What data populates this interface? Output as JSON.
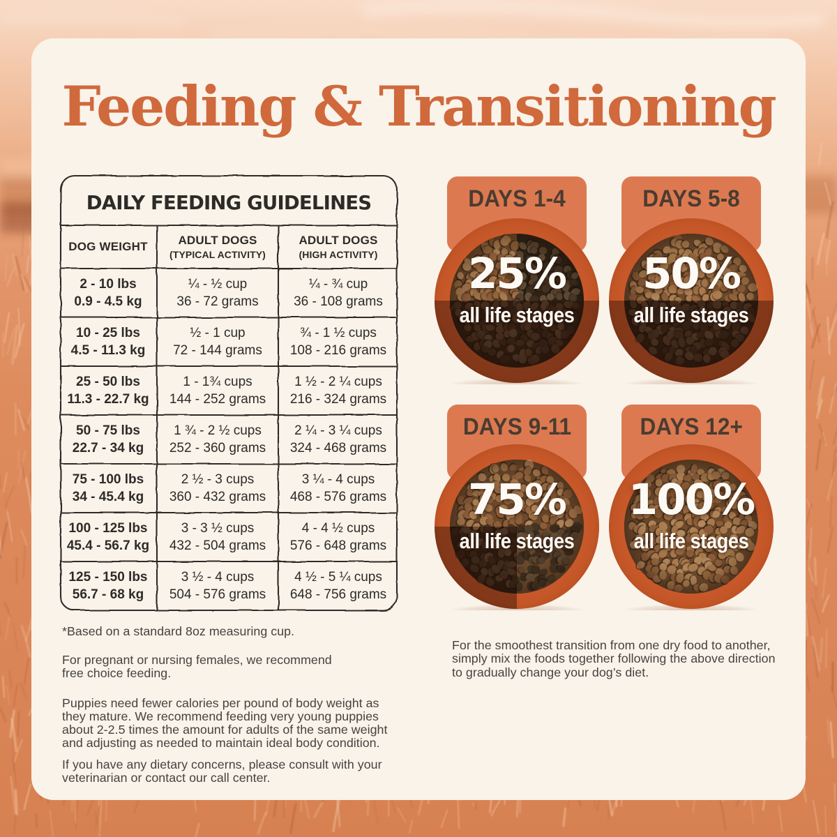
{
  "page": {
    "title": "Feeding & Transitioning"
  },
  "colors": {
    "title_orange": "#d0693c",
    "card_bg": "#f9f3ea",
    "text_dark": "#2d2b28",
    "text_body": "#45423e",
    "step_header_bg": "#dd7950",
    "step_header_text": "#4a3c31",
    "bowl_rim": "#ca5a2d",
    "bowl_rim_dark": "#b54d24",
    "field_orange": "#dd8a5c",
    "sky_peach": "#f6d2ba",
    "white_text": "#fdfaf5"
  },
  "table": {
    "title": "DAILY FEEDING GUIDELINES",
    "columns": [
      {
        "label": "DOG WEIGHT",
        "sub": ""
      },
      {
        "label": "ADULT DOGS",
        "sub": "(TYPICAL ACTIVITY)"
      },
      {
        "label": "ADULT DOGS",
        "sub": "(HIGH ACTIVITY)"
      }
    ],
    "rows": [
      {
        "weight": [
          "2 - 10 lbs",
          "0.9 - 4.5 kg"
        ],
        "typical": [
          "¼ - ½ cup",
          "36 - 72 grams"
        ],
        "high": [
          "¼ - ¾ cup",
          "36 - 108 grams"
        ]
      },
      {
        "weight": [
          "10 - 25 lbs",
          "4.5 - 11.3 kg"
        ],
        "typical": [
          "½ - 1 cup",
          "72 - 144 grams"
        ],
        "high": [
          "¾ - 1 ½ cups",
          "108 - 216 grams"
        ]
      },
      {
        "weight": [
          "25 - 50 lbs",
          "11.3 - 22.7 kg"
        ],
        "typical": [
          "1 - 1¾ cups",
          "144 - 252 grams"
        ],
        "high": [
          "1 ½ - 2 ¼ cups",
          "216 - 324 grams"
        ]
      },
      {
        "weight": [
          "50 - 75 lbs",
          "22.7 - 34 kg"
        ],
        "typical": [
          "1 ¾ - 2 ½ cups",
          "252 - 360 grams"
        ],
        "high": [
          "2 ¼ - 3 ¼ cups",
          "324 - 468 grams"
        ]
      },
      {
        "weight": [
          "75 - 100 lbs",
          "34 - 45.4 kg"
        ],
        "typical": [
          "2 ½ - 3 cups",
          "360 - 432 grams"
        ],
        "high": [
          "3 ¼ - 4 cups",
          "468 - 576 grams"
        ]
      },
      {
        "weight": [
          "100 - 125 lbs",
          "45.4 - 56.7 kg"
        ],
        "typical": [
          "3 - 3 ½ cups",
          "432 - 504 grams"
        ],
        "high": [
          "4 - 4 ½ cups",
          "576 - 648 grams"
        ]
      },
      {
        "weight": [
          "125 - 150 lbs",
          "56.7 - 68 kg"
        ],
        "typical": [
          "3 ½ - 4 cups",
          "504 - 576 grams"
        ],
        "high": [
          "4 ½ - 5 ¼ cups",
          "648 - 756 grams"
        ]
      }
    ]
  },
  "notes": [
    {
      "lines": [
        "*Based on a standard 8oz measuring cup."
      ]
    },
    {
      "lines": [
        "For pregnant or nursing females, we recommend",
        "free choice feeding."
      ]
    },
    {
      "lines": [
        "Puppies need fewer calories per pound of body weight as",
        "they mature. We recommend feeding very young puppies",
        "about 2-2.5 times the amount for adults of the same weight",
        "and adjusting as needed to maintain ideal body condition."
      ]
    },
    {
      "lines": [
        "If you have any dietary concerns, please consult with your",
        "veterinarian or contact our call center."
      ]
    }
  ],
  "transition": {
    "steps": [
      {
        "label": "DAYS 1-4",
        "percent": "25%",
        "value": 25,
        "sub": "all life stages"
      },
      {
        "label": "DAYS 5-8",
        "percent": "50%",
        "value": 50,
        "sub": "all life stages"
      },
      {
        "label": "DAYS 9-11",
        "percent": "75%",
        "value": 75,
        "sub": "all life stages"
      },
      {
        "label": "DAYS 12+",
        "percent": "100%",
        "value": 100,
        "sub": "all life stages"
      }
    ],
    "note": {
      "lines": [
        "For the smoothest transition from one dry food to another,",
        "simply mix the foods together following the above direction",
        "to gradually change your dog’s diet."
      ]
    },
    "kibble_light": [
      "#a5764a",
      "#b08152",
      "#99683f",
      "#ad7c4e",
      "#8f5f3a",
      "#b8895c"
    ],
    "kibble_dark": [
      "#51402c",
      "#463525",
      "#5b452e",
      "#3d2e1e",
      "#64503a"
    ],
    "kibble_base_light": "#6f4c2d",
    "kibble_base_dark": "#302417"
  }
}
